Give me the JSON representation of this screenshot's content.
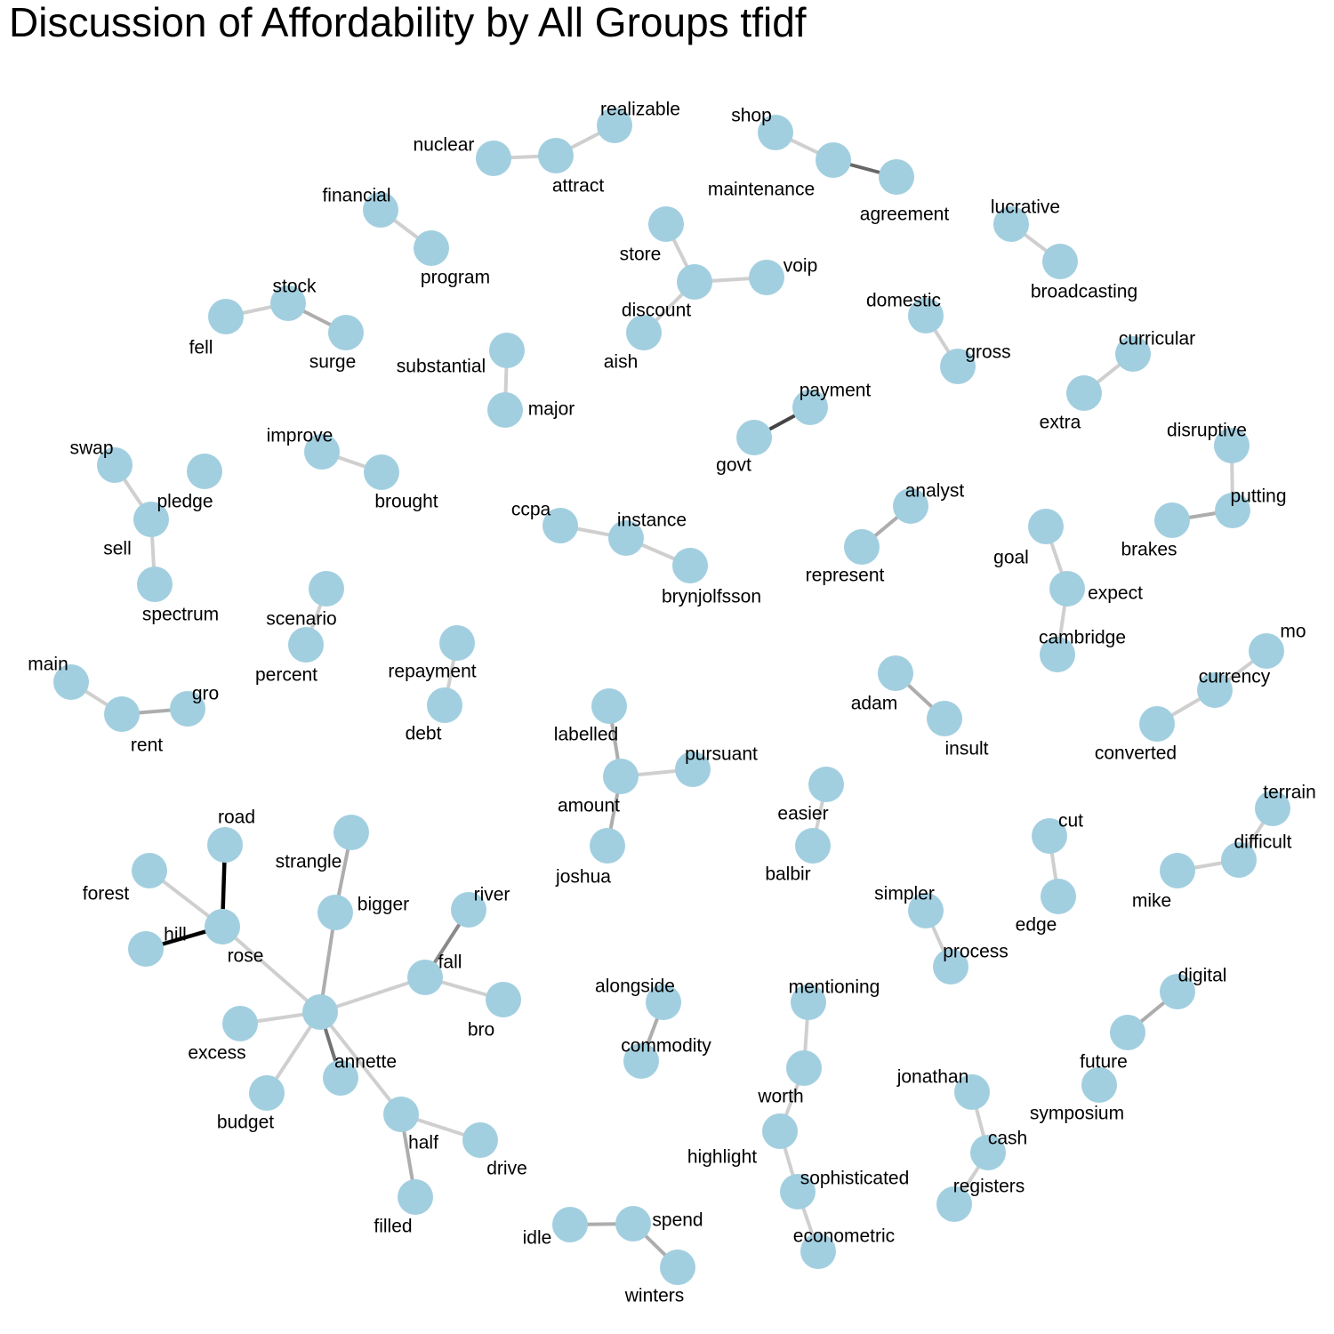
{
  "title": "Discussion of Affordability by All Groups tfidf",
  "colors": {
    "node": "#a2cfe0",
    "label": "#000000"
  },
  "nodes": [
    {
      "id": "realizable",
      "label": "realizable"
    },
    {
      "id": "nuclear",
      "label": "nuclear"
    },
    {
      "id": "attract",
      "label": "attract"
    },
    {
      "id": "shop",
      "label": "shop"
    },
    {
      "id": "maintenance",
      "label": "maintenance"
    },
    {
      "id": "agreement",
      "label": "agreement"
    },
    {
      "id": "financial",
      "label": "financial"
    },
    {
      "id": "program",
      "label": "program"
    },
    {
      "id": "store",
      "label": "store"
    },
    {
      "id": "voip",
      "label": "voip"
    },
    {
      "id": "discount",
      "label": "discount"
    },
    {
      "id": "aish",
      "label": "aish"
    },
    {
      "id": "lucrative",
      "label": "lucrative"
    },
    {
      "id": "broadcasting",
      "label": "broadcasting"
    },
    {
      "id": "stock",
      "label": "stock"
    },
    {
      "id": "fell",
      "label": "fell"
    },
    {
      "id": "surge",
      "label": "surge"
    },
    {
      "id": "domestic",
      "label": "domestic"
    },
    {
      "id": "gross",
      "label": "gross"
    },
    {
      "id": "substantial",
      "label": "substantial"
    },
    {
      "id": "major",
      "label": "major"
    },
    {
      "id": "curricular",
      "label": "curricular"
    },
    {
      "id": "extra",
      "label": "extra"
    },
    {
      "id": "payment",
      "label": "payment"
    },
    {
      "id": "govt",
      "label": "govt"
    },
    {
      "id": "swap",
      "label": "swap"
    },
    {
      "id": "pledge",
      "label": "pledge"
    },
    {
      "id": "sell",
      "label": "sell"
    },
    {
      "id": "spectrum",
      "label": "spectrum"
    },
    {
      "id": "improve",
      "label": "improve"
    },
    {
      "id": "brought",
      "label": "brought"
    },
    {
      "id": "disruptive",
      "label": "disruptive"
    },
    {
      "id": "putting",
      "label": "putting"
    },
    {
      "id": "brakes",
      "label": "brakes"
    },
    {
      "id": "ccpa",
      "label": "ccpa"
    },
    {
      "id": "instance",
      "label": "instance"
    },
    {
      "id": "brynjolfsson",
      "label": "brynjolfsson"
    },
    {
      "id": "analyst",
      "label": "analyst"
    },
    {
      "id": "represent",
      "label": "represent"
    },
    {
      "id": "goal",
      "label": "goal"
    },
    {
      "id": "expect",
      "label": "expect"
    },
    {
      "id": "cambridge",
      "label": "cambridge"
    },
    {
      "id": "scenario",
      "label": "scenario"
    },
    {
      "id": "percent",
      "label": "percent"
    },
    {
      "id": "repayment",
      "label": "repayment"
    },
    {
      "id": "debt",
      "label": "debt"
    },
    {
      "id": "main",
      "label": "main"
    },
    {
      "id": "rent",
      "label": "rent"
    },
    {
      "id": "gro",
      "label": "gro"
    },
    {
      "id": "mo",
      "label": "mo"
    },
    {
      "id": "currency",
      "label": "currency"
    },
    {
      "id": "converted",
      "label": "converted"
    },
    {
      "id": "adam",
      "label": "adam"
    },
    {
      "id": "insult",
      "label": "insult"
    },
    {
      "id": "labelled",
      "label": "labelled"
    },
    {
      "id": "pursuant",
      "label": "pursuant"
    },
    {
      "id": "amount",
      "label": "amount"
    },
    {
      "id": "joshua",
      "label": "joshua"
    },
    {
      "id": "easier",
      "label": "easier"
    },
    {
      "id": "balbir",
      "label": "balbir"
    },
    {
      "id": "terrain",
      "label": "terrain"
    },
    {
      "id": "difficult",
      "label": "difficult"
    },
    {
      "id": "mike",
      "label": "mike"
    },
    {
      "id": "cut",
      "label": "cut"
    },
    {
      "id": "edge",
      "label": "edge"
    },
    {
      "id": "road",
      "label": "road"
    },
    {
      "id": "forest",
      "label": "forest"
    },
    {
      "id": "hill",
      "label": "hill"
    },
    {
      "id": "rose",
      "label": "rose"
    },
    {
      "id": "strangle",
      "label": "strangle"
    },
    {
      "id": "bigger",
      "label": "bigger"
    },
    {
      "id": "river",
      "label": "river"
    },
    {
      "id": "fall",
      "label": "fall"
    },
    {
      "id": "bro",
      "label": "bro"
    },
    {
      "id": "hub",
      "label": ""
    },
    {
      "id": "excess",
      "label": "excess"
    },
    {
      "id": "annette",
      "label": "annette"
    },
    {
      "id": "budget",
      "label": "budget"
    },
    {
      "id": "half",
      "label": "half"
    },
    {
      "id": "drive",
      "label": "drive"
    },
    {
      "id": "filled",
      "label": "filled"
    },
    {
      "id": "simpler",
      "label": "simpler"
    },
    {
      "id": "process",
      "label": "process"
    },
    {
      "id": "alongside",
      "label": "alongside"
    },
    {
      "id": "commodity",
      "label": "commodity"
    },
    {
      "id": "mentioning",
      "label": "mentioning"
    },
    {
      "id": "worth",
      "label": "worth"
    },
    {
      "id": "highlight",
      "label": "highlight"
    },
    {
      "id": "sophisticated",
      "label": "sophisticated"
    },
    {
      "id": "econometric",
      "label": "econometric"
    },
    {
      "id": "digital",
      "label": "digital"
    },
    {
      "id": "future",
      "label": "future"
    },
    {
      "id": "symposium",
      "label": "symposium"
    },
    {
      "id": "jonathan",
      "label": "jonathan"
    },
    {
      "id": "cash",
      "label": "cash"
    },
    {
      "id": "registers",
      "label": "registers"
    },
    {
      "id": "idle",
      "label": "idle"
    },
    {
      "id": "spend",
      "label": "spend"
    },
    {
      "id": "winters",
      "label": "winters"
    }
  ],
  "edges": [
    {
      "source": "nuclear",
      "target": "attract",
      "weight": 0.1
    },
    {
      "source": "attract",
      "target": "realizable",
      "weight": 0.1
    },
    {
      "source": "shop",
      "target": "maintenance",
      "weight": 0.1
    },
    {
      "source": "maintenance",
      "target": "agreement",
      "weight": 0.55
    },
    {
      "source": "financial",
      "target": "program",
      "weight": 0.1
    },
    {
      "source": "store",
      "target": "discount",
      "weight": 0.1
    },
    {
      "source": "discount",
      "target": "voip",
      "weight": 0.1
    },
    {
      "source": "discount",
      "target": "aish",
      "weight": 0.1
    },
    {
      "source": "lucrative",
      "target": "broadcasting",
      "weight": 0.1
    },
    {
      "source": "fell",
      "target": "stock",
      "weight": 0.1
    },
    {
      "source": "stock",
      "target": "surge",
      "weight": 0.25
    },
    {
      "source": "domestic",
      "target": "gross",
      "weight": 0.1
    },
    {
      "source": "substantial",
      "target": "major",
      "weight": 0.1
    },
    {
      "source": "curricular",
      "target": "extra",
      "weight": 0.1
    },
    {
      "source": "govt",
      "target": "payment",
      "weight": 0.7
    },
    {
      "source": "swap",
      "target": "sell",
      "weight": 0.1
    },
    {
      "source": "sell",
      "target": "spectrum",
      "weight": 0.1
    },
    {
      "source": "improve",
      "target": "brought",
      "weight": 0.1
    },
    {
      "source": "disruptive",
      "target": "putting",
      "weight": 0.1
    },
    {
      "source": "putting",
      "target": "brakes",
      "weight": 0.25
    },
    {
      "source": "ccpa",
      "target": "instance",
      "weight": 0.1
    },
    {
      "source": "instance",
      "target": "brynjolfsson",
      "weight": 0.1
    },
    {
      "source": "analyst",
      "target": "represent",
      "weight": 0.25
    },
    {
      "source": "goal",
      "target": "expect",
      "weight": 0.1
    },
    {
      "source": "expect",
      "target": "cambridge",
      "weight": 0.1
    },
    {
      "source": "scenario",
      "target": "percent",
      "weight": 0.1
    },
    {
      "source": "repayment",
      "target": "debt",
      "weight": 0.1
    },
    {
      "source": "main",
      "target": "rent",
      "weight": 0.1
    },
    {
      "source": "rent",
      "target": "gro",
      "weight": 0.25
    },
    {
      "source": "mo",
      "target": "currency",
      "weight": 0.1
    },
    {
      "source": "currency",
      "target": "converted",
      "weight": 0.1
    },
    {
      "source": "adam",
      "target": "insult",
      "weight": 0.25
    },
    {
      "source": "labelled",
      "target": "amount",
      "weight": 0.25
    },
    {
      "source": "amount",
      "target": "pursuant",
      "weight": 0.1
    },
    {
      "source": "amount",
      "target": "joshua",
      "weight": 0.25
    },
    {
      "source": "easier",
      "target": "balbir",
      "weight": 0.1
    },
    {
      "source": "terrain",
      "target": "difficult",
      "weight": 0.1
    },
    {
      "source": "difficult",
      "target": "mike",
      "weight": 0.1
    },
    {
      "source": "cut",
      "target": "edge",
      "weight": 0.1
    },
    {
      "source": "road",
      "target": "rose",
      "weight": 1.0
    },
    {
      "source": "hill",
      "target": "rose",
      "weight": 1.0
    },
    {
      "source": "forest",
      "target": "rose",
      "weight": 0.1
    },
    {
      "source": "rose",
      "target": "hub",
      "weight": 0.1
    },
    {
      "source": "strangle",
      "target": "bigger",
      "weight": 0.25
    },
    {
      "source": "bigger",
      "target": "hub",
      "weight": 0.25
    },
    {
      "source": "river",
      "target": "fall",
      "weight": 0.4
    },
    {
      "source": "fall",
      "target": "bro",
      "weight": 0.1
    },
    {
      "source": "fall",
      "target": "hub",
      "weight": 0.1
    },
    {
      "source": "excess",
      "target": "hub",
      "weight": 0.1
    },
    {
      "source": "annette",
      "target": "hub",
      "weight": 0.5
    },
    {
      "source": "budget",
      "target": "hub",
      "weight": 0.1
    },
    {
      "source": "hub",
      "target": "half",
      "weight": 0.1
    },
    {
      "source": "half",
      "target": "drive",
      "weight": 0.1
    },
    {
      "source": "half",
      "target": "filled",
      "weight": 0.25
    },
    {
      "source": "simpler",
      "target": "process",
      "weight": 0.1
    },
    {
      "source": "alongside",
      "target": "commodity",
      "weight": 0.25
    },
    {
      "source": "mentioning",
      "target": "worth",
      "weight": 0.1
    },
    {
      "source": "worth",
      "target": "highlight",
      "weight": 0.1
    },
    {
      "source": "highlight",
      "target": "sophisticated",
      "weight": 0.1
    },
    {
      "source": "sophisticated",
      "target": "econometric",
      "weight": 0.1
    },
    {
      "source": "digital",
      "target": "future",
      "weight": 0.25
    },
    {
      "source": "jonathan",
      "target": "cash",
      "weight": 0.1
    },
    {
      "source": "cash",
      "target": "registers",
      "weight": 0.1
    },
    {
      "source": "idle",
      "target": "spend",
      "weight": 0.25
    },
    {
      "source": "spend",
      "target": "winters",
      "weight": 0.25
    }
  ]
}
